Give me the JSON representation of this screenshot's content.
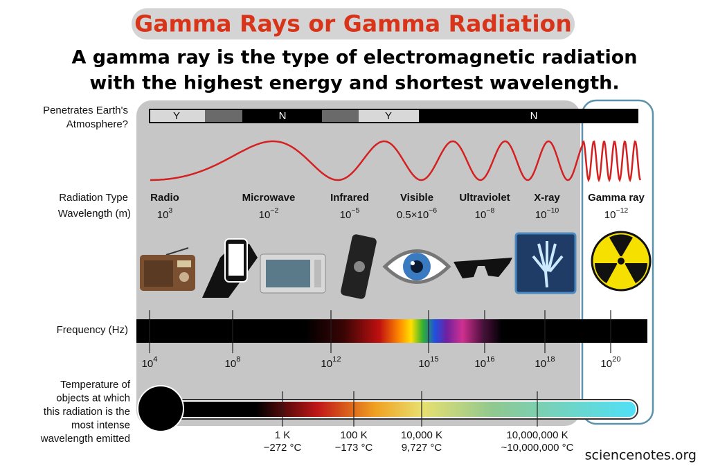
{
  "title": "Gamma Rays or Gamma Radiation",
  "subtitle_lines": [
    "A gamma ray is the type of electromagnetic radiation",
    "with the highest energy and shortest wavelength."
  ],
  "atmosphere": {
    "label_lines": [
      "Penetrates Earth's",
      "Atmosphere?"
    ],
    "segments": [
      "Y",
      "N",
      "Y",
      "N"
    ]
  },
  "radiation_type_label": "Radiation Type",
  "wavelength_label": "Wavelength (m)",
  "radiation_types": [
    {
      "name": "Radio",
      "wavelength": {
        "base": "10",
        "exponent": "3"
      }
    },
    {
      "name": "Microwave",
      "wavelength": {
        "base": "10",
        "exponent": "−2"
      }
    },
    {
      "name": "Infrared",
      "wavelength": {
        "base": "10",
        "exponent": "−5"
      }
    },
    {
      "name": "Visible",
      "wavelength": {
        "base": "0.5×10",
        "exponent": "−6"
      }
    },
    {
      "name": "Ultraviolet",
      "wavelength": {
        "base": "10",
        "exponent": "−8"
      }
    },
    {
      "name": "X-ray",
      "wavelength": {
        "base": "10",
        "exponent": "−10"
      }
    },
    {
      "name": "Gamma ray",
      "wavelength": {
        "base": "10",
        "exponent": "−12"
      }
    }
  ],
  "frequency": {
    "label": "Frequency (Hz)",
    "ticks": [
      {
        "base": "10",
        "exponent": "4"
      },
      {
        "base": "10",
        "exponent": "8"
      },
      {
        "base": "10",
        "exponent": "12"
      },
      {
        "base": "10",
        "exponent": "15"
      },
      {
        "base": "10",
        "exponent": "16"
      },
      {
        "base": "10",
        "exponent": "18"
      },
      {
        "base": "10",
        "exponent": "20"
      }
    ]
  },
  "temperature": {
    "label_lines": [
      "Temperature of",
      "objects at which",
      "this radiation is the",
      "most intense",
      "wavelength emitted"
    ],
    "ticks": [
      {
        "kelvin": "1 K",
        "celsius": "−272 °C"
      },
      {
        "kelvin": "100 K",
        "celsius": "−173 °C"
      },
      {
        "kelvin": "10,000 K",
        "celsius": "9,727 °C"
      },
      {
        "kelvin": "10,000,000 K",
        "celsius": "~10,000,000 °C"
      }
    ]
  },
  "footer": "sciencenotes.org"
}
